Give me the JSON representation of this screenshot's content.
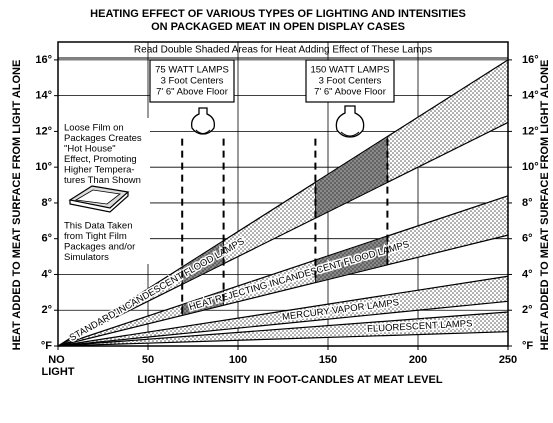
{
  "chart_data": {
    "type": "range-band",
    "title": [
      "HEATING EFFECT OF VARIOUS TYPES OF LIGHTING AND INTENSITIES",
      "ON PACKAGED MEAT IN OPEN DISPLAY CASES"
    ],
    "x_label": "LIGHTING INTENSITY IN FOOT-CANDLES AT MEAT LEVEL",
    "y_label": "HEAT ADDED TO MEAT SURFACE FROM LIGHT ALONE",
    "y2_label": "HEAT ADDED TO MEAT SURFACE FROM LIGHT ALONE",
    "header": "Read Double Shaded Areas for Heat Adding Effect of These Lamps",
    "lamp_boxes": [
      {
        "lines": [
          "75 WATT LAMPS",
          "3 Foot Centers",
          "7' 6\" Above Floor"
        ]
      },
      {
        "lines": [
          "150 WATT LAMPS",
          "3 Foot Centers",
          "7' 6\" Above Floor"
        ]
      }
    ],
    "notes": [
      [
        "Loose Film on",
        "Packages Creates",
        "\"Hot House\"",
        "Effect, Promoting",
        "Higher Tempera-",
        "tures Than Shown"
      ],
      [
        "This Data Taken",
        "from Tight Film",
        "Packages and/or",
        "Simulators"
      ]
    ],
    "x": [
      0,
      250
    ],
    "series": [
      {
        "name": "STANDARD INCANDESCENT FLOOD LAMPS",
        "low": [
          0,
          12.5
        ],
        "high": [
          0,
          16
        ]
      },
      {
        "name": "HEAT REJECTING INCANDESCENT FLOOD LAMPS",
        "low": [
          0,
          6.2
        ],
        "high": [
          0,
          8.4
        ]
      },
      {
        "name": "MERCURY VAPOR LAMPS",
        "low": [
          0,
          2.5
        ],
        "high": [
          0,
          3.9
        ]
      },
      {
        "name": "FLUORESCENT LAMPS",
        "low": [
          0,
          0.8
        ],
        "high": [
          0,
          1.9
        ]
      }
    ],
    "double_shaded": [
      [
        69,
        92
      ],
      [
        143,
        183
      ]
    ],
    "dashed_top": 11.6,
    "xlim": [
      0,
      250
    ],
    "ylim": [
      0,
      17
    ],
    "y2lim": [
      0,
      17
    ],
    "xticks": [
      {
        "value": 0,
        "label": "NO LIGHT"
      },
      50,
      100,
      150,
      200,
      250
    ],
    "yticks": [
      {
        "value": 0,
        "label": "°F"
      },
      {
        "value": 2,
        "label": "2°"
      },
      {
        "value": 4,
        "label": "4°"
      },
      {
        "value": 6,
        "label": "6°"
      },
      {
        "value": 8,
        "label": "8°"
      },
      {
        "value": 10,
        "label": "10°"
      },
      {
        "value": 12,
        "label": "12°"
      },
      {
        "value": 14,
        "label": "14°"
      },
      {
        "value": 16,
        "label": "16°"
      }
    ],
    "y2ticks": [
      {
        "value": 0,
        "label": "°F"
      },
      {
        "value": 2,
        "label": "2°"
      },
      {
        "value": 4,
        "label": "4°"
      },
      {
        "value": 6,
        "label": "6°"
      },
      {
        "value": 8,
        "label": "8°"
      },
      {
        "value": 10,
        "label": "10°"
      },
      {
        "value": 12,
        "label": "12°"
      },
      {
        "value": 14,
        "label": "14°"
      },
      {
        "value": 16,
        "label": "16°"
      }
    ],
    "grid": true
  }
}
